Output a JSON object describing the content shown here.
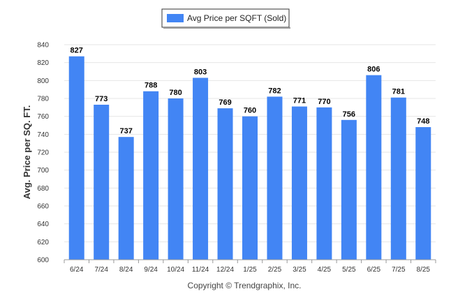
{
  "chart_data": {
    "type": "bar",
    "categories": [
      "6/24",
      "7/24",
      "8/24",
      "9/24",
      "10/24",
      "11/24",
      "12/24",
      "1/25",
      "2/25",
      "3/25",
      "4/25",
      "5/25",
      "6/25",
      "7/25",
      "8/25"
    ],
    "series": [
      {
        "name": "Avg Price per SQFT (Sold)",
        "values": [
          827,
          773,
          737,
          788,
          780,
          803,
          769,
          760,
          782,
          771,
          770,
          756,
          806,
          781,
          748
        ]
      }
    ],
    "ylabel": "Avg. Price per SQ. FT.",
    "xlabel": "",
    "ylim": [
      600,
      840
    ],
    "yticks": [
      600,
      620,
      640,
      660,
      680,
      700,
      720,
      740,
      760,
      780,
      800,
      820,
      840
    ],
    "grid": true,
    "legend_position": "top-center",
    "bar_color": "#4285f4",
    "data_labels": true
  },
  "credit": "Copyright © Trendgraphix, Inc."
}
